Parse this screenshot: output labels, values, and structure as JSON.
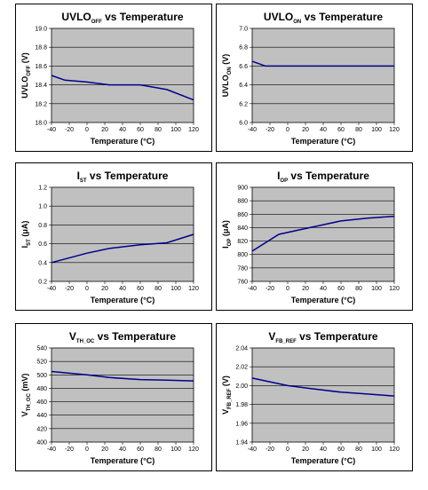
{
  "chart_data": [
    {
      "type": "line",
      "title": "UVLO",
      "title_sub": "OFF",
      "title_tail": " vs Temperature",
      "ylabel": "UVLO",
      "ylabel_sub": "OFF",
      "ylabel_tail": "(V)",
      "xlabel": "Temperature (°C)",
      "x": [
        -40,
        -25,
        0,
        25,
        60,
        90,
        120
      ],
      "y": [
        18.5,
        18.45,
        18.43,
        18.4,
        18.4,
        18.35,
        18.24
      ],
      "xlim": [
        -40,
        120
      ],
      "ylim": [
        18.0,
        19.0
      ],
      "xticks": [
        "-40",
        "-20",
        "0",
        "20",
        "40",
        "60",
        "80",
        "100",
        "120"
      ],
      "yticks": [
        "18.0",
        "18.2",
        "18.4",
        "18.6",
        "18.8",
        "19.0"
      ]
    },
    {
      "type": "line",
      "title": "UVLO",
      "title_sub": "ON",
      "title_tail": " vs Temperature",
      "ylabel": "UVLO",
      "ylabel_sub": "ON",
      "ylabel_tail": "(V)",
      "xlabel": "Temperature (°C)",
      "x": [
        -40,
        -25,
        0,
        25,
        60,
        90,
        120
      ],
      "y": [
        6.65,
        6.6,
        6.6,
        6.6,
        6.6,
        6.6,
        6.6
      ],
      "xlim": [
        -40,
        120
      ],
      "ylim": [
        6.0,
        7.0
      ],
      "xticks": [
        "-40",
        "-20",
        "0",
        "20",
        "40",
        "60",
        "80",
        "100",
        "120"
      ],
      "yticks": [
        "6.0",
        "6.2",
        "6.4",
        "6.6",
        "6.8",
        "7.0"
      ]
    },
    {
      "type": "line",
      "title": "I",
      "title_sub": "ST",
      "title_tail": " vs Temperature",
      "ylabel": "I",
      "ylabel_sub": "ST",
      "ylabel_tail": "(μA)",
      "xlabel": "Temperature (°C)",
      "x": [
        -40,
        0,
        25,
        60,
        90,
        120
      ],
      "y": [
        0.4,
        0.5,
        0.55,
        0.59,
        0.61,
        0.7
      ],
      "xlim": [
        -40,
        120
      ],
      "ylim": [
        0.2,
        1.2
      ],
      "xticks": [
        "-40",
        "-20",
        "0",
        "20",
        "40",
        "60",
        "80",
        "100",
        "120"
      ],
      "yticks": [
        "0.2",
        "0.4",
        "0.6",
        "0.8",
        "1.0",
        "1.2"
      ]
    },
    {
      "type": "line",
      "title": "I",
      "title_sub": "OP",
      "title_tail": " vs Temperature",
      "ylabel": "I",
      "ylabel_sub": "OP",
      "ylabel_tail": "(μA)",
      "xlabel": "Temperature (°C)",
      "x": [
        -40,
        -10,
        25,
        60,
        90,
        120
      ],
      "y": [
        805,
        830,
        840,
        850,
        854,
        857
      ],
      "xlim": [
        -40,
        120
      ],
      "ylim": [
        760,
        900
      ],
      "xticks": [
        "-40",
        "-20",
        "0",
        "20",
        "40",
        "60",
        "80",
        "100",
        "120"
      ],
      "yticks": [
        "760",
        "780",
        "800",
        "820",
        "840",
        "860",
        "880",
        "900"
      ]
    },
    {
      "type": "line",
      "title": "V",
      "title_sub": "TH_OC",
      "title_tail": " vs Temperature",
      "ylabel": "V",
      "ylabel_sub": "TH_OC",
      "ylabel_tail": "(mV)",
      "xlabel": "Temperature (°C)",
      "x": [
        -40,
        0,
        25,
        60,
        90,
        120
      ],
      "y": [
        505,
        500,
        496,
        493,
        492,
        491
      ],
      "xlim": [
        -40,
        120
      ],
      "ylim": [
        400,
        540
      ],
      "xticks": [
        "-40",
        "-20",
        "0",
        "20",
        "40",
        "60",
        "80",
        "100",
        "120"
      ],
      "yticks": [
        "400",
        "420",
        "440",
        "460",
        "480",
        "500",
        "520",
        "540"
      ]
    },
    {
      "type": "line",
      "title": "V",
      "title_sub": "FB_REF",
      "title_tail": " vs Temperature",
      "ylabel": "V",
      "ylabel_sub": "FB_REF",
      "ylabel_tail": "(V)",
      "xlabel": "Temperature (°C)",
      "x": [
        -40,
        -25,
        0,
        25,
        60,
        90,
        120
      ],
      "y": [
        2.008,
        2.005,
        2.0,
        1.997,
        1.993,
        1.991,
        1.989
      ],
      "xlim": [
        -40,
        120
      ],
      "ylim": [
        1.94,
        2.04
      ],
      "xticks": [
        "-40",
        "-20",
        "0",
        "20",
        "40",
        "60",
        "80",
        "100",
        "120"
      ],
      "yticks": [
        "1.94",
        "1.96",
        "1.98",
        "2.00",
        "2.02",
        "2.04"
      ]
    }
  ]
}
